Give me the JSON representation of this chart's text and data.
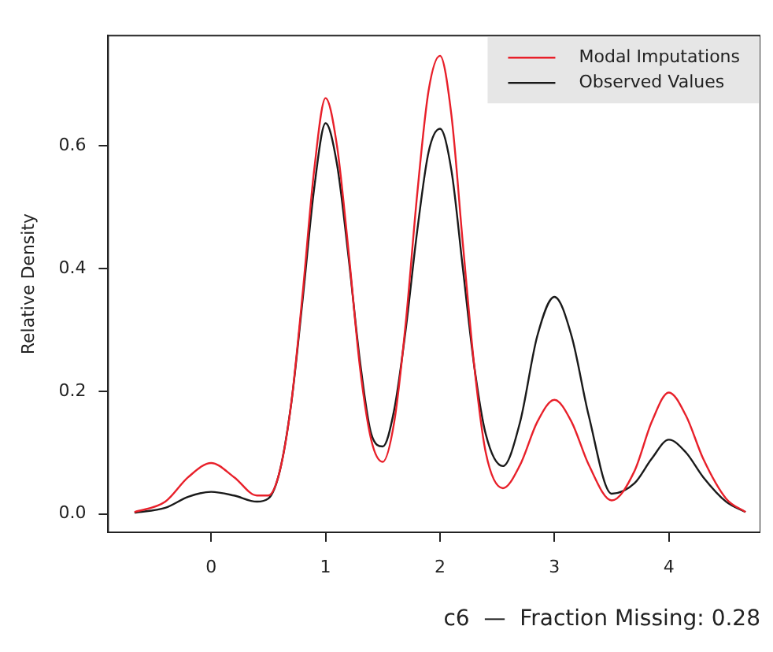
{
  "chart_data": {
    "type": "line",
    "xlabel": "c6  —  Fraction Missing: 0.28",
    "ylabel": "Relative Density",
    "x": [
      -0.67,
      -0.4,
      -0.2,
      0,
      0.2,
      0.4,
      0.5,
      0.6,
      0.7,
      0.8,
      0.9,
      1,
      1.1,
      1.2,
      1.3,
      1.4,
      1.5,
      1.6,
      1.7,
      1.8,
      1.9,
      2,
      2.1,
      2.2,
      2.3,
      2.4,
      2.55,
      2.7,
      2.85,
      3,
      3.15,
      3.3,
      3.5,
      3.7,
      3.85,
      4,
      4.15,
      4.3,
      4.5,
      4.67
    ],
    "series": [
      {
        "name": "Modal Imputations",
        "color": "#e8202a",
        "values": [
          0.003,
          0.02,
          0.06,
          0.083,
          0.06,
          0.03,
          0.03,
          0.07,
          0.18,
          0.36,
          0.56,
          0.678,
          0.6,
          0.43,
          0.24,
          0.12,
          0.085,
          0.15,
          0.31,
          0.52,
          0.69,
          0.747,
          0.65,
          0.44,
          0.24,
          0.1,
          0.042,
          0.08,
          0.15,
          0.186,
          0.15,
          0.08,
          0.022,
          0.07,
          0.15,
          0.198,
          0.16,
          0.09,
          0.025,
          0.003
        ]
      },
      {
        "name": "Observed Values",
        "color": "#1a1a1a",
        "values": [
          0.002,
          0.01,
          0.028,
          0.036,
          0.03,
          0.02,
          0.025,
          0.07,
          0.18,
          0.35,
          0.53,
          0.637,
          0.57,
          0.42,
          0.25,
          0.13,
          0.11,
          0.17,
          0.3,
          0.46,
          0.59,
          0.628,
          0.56,
          0.4,
          0.24,
          0.13,
          0.078,
          0.15,
          0.29,
          0.354,
          0.29,
          0.16,
          0.033,
          0.05,
          0.09,
          0.121,
          0.1,
          0.06,
          0.02,
          0.003
        ]
      }
    ],
    "xlim": [
      -0.9,
      4.8
    ],
    "ylim": [
      -0.03,
      0.78
    ],
    "xticks": [
      0,
      1,
      2,
      3,
      4
    ],
    "yticks": [
      {
        "value": 0,
        "label": "0.0"
      },
      {
        "value": 0.2,
        "label": "0.2"
      },
      {
        "value": 0.4,
        "label": "0.4"
      },
      {
        "value": 0.6,
        "label": "0.6"
      }
    ],
    "legend": "top right",
    "grid": false,
    "marker": "none",
    "line_style": "solid"
  }
}
